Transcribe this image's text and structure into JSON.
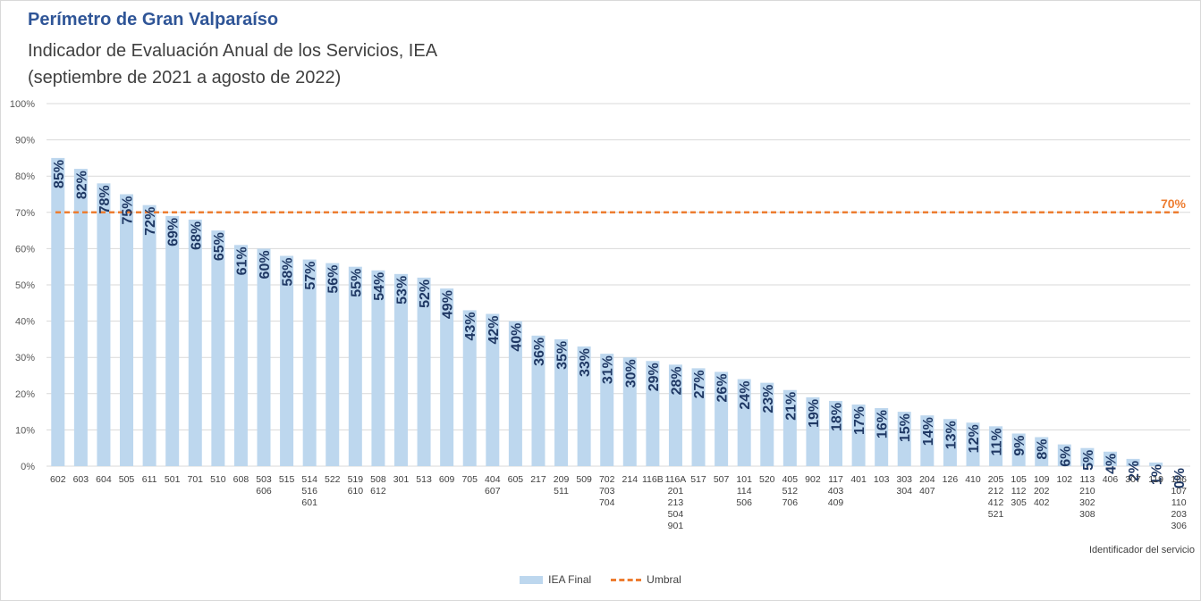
{
  "header": {
    "title": "Perímetro de Gran Valparaíso",
    "subtitle_line1": "Indicador de Evaluación Anual de los Servicios, IEA",
    "subtitle_line2": "(septiembre de 2021 a agosto de 2022)"
  },
  "legend": {
    "bar_label": "IEA Final",
    "line_label": "Umbral"
  },
  "colors": {
    "bar": "#bdd7ee",
    "threshold": "#ed7d31",
    "data_label": "#1f3864",
    "title": "#2f5597",
    "grid": "#d9d9d9"
  },
  "chart_data": {
    "type": "bar",
    "xlabel": "Identificador  del servicio",
    "ylabel": "",
    "ylim": [
      0,
      100
    ],
    "yticks": [
      "0%",
      "10%",
      "20%",
      "30%",
      "40%",
      "50%",
      "60%",
      "70%",
      "80%",
      "90%",
      "100%"
    ],
    "grid": true,
    "legend_position": "bottom",
    "categories": [
      [
        "602"
      ],
      [
        "603"
      ],
      [
        "604"
      ],
      [
        "505"
      ],
      [
        "611"
      ],
      [
        "501"
      ],
      [
        "701"
      ],
      [
        "510"
      ],
      [
        "608"
      ],
      [
        "503",
        "606"
      ],
      [
        "515"
      ],
      [
        "514",
        "516",
        "601"
      ],
      [
        "522"
      ],
      [
        "519",
        "610"
      ],
      [
        "508",
        "612"
      ],
      [
        "301"
      ],
      [
        "513"
      ],
      [
        "609"
      ],
      [
        "705"
      ],
      [
        "404",
        "607"
      ],
      [
        "605"
      ],
      [
        "217"
      ],
      [
        "209",
        "511"
      ],
      [
        "509"
      ],
      [
        "702",
        "703",
        "704"
      ],
      [
        "214"
      ],
      [
        "116B"
      ],
      [
        "116A",
        "201",
        "213",
        "504",
        "901"
      ],
      [
        "517"
      ],
      [
        "507"
      ],
      [
        "101",
        "114",
        "506"
      ],
      [
        "520"
      ],
      [
        "405",
        "512",
        "706"
      ],
      [
        "902"
      ],
      [
        "117",
        "403",
        "409"
      ],
      [
        "401"
      ],
      [
        "103"
      ],
      [
        "303",
        "304"
      ],
      [
        "204",
        "407"
      ],
      [
        "126"
      ],
      [
        "410"
      ],
      [
        "205",
        "212",
        "412",
        "521"
      ],
      [
        "105",
        "112",
        "305"
      ],
      [
        "109",
        "202",
        "402"
      ],
      [
        "102"
      ],
      [
        "113",
        "210",
        "302",
        "308"
      ],
      [
        "406"
      ],
      [
        "307"
      ],
      [
        "119"
      ],
      [
        "106",
        "107",
        "110",
        "203",
        "306"
      ]
    ],
    "series": [
      {
        "name": "IEA Final",
        "values": [
          85,
          82,
          78,
          75,
          72,
          69,
          68,
          65,
          61,
          60,
          58,
          57,
          56,
          55,
          54,
          53,
          52,
          49,
          43,
          42,
          40,
          36,
          35,
          33,
          31,
          30,
          29,
          28,
          27,
          26,
          24,
          23,
          21,
          19,
          18,
          17,
          16,
          15,
          14,
          13,
          12,
          11,
          9,
          8,
          6,
          5,
          4,
          2,
          1,
          0
        ],
        "labels": [
          "85%",
          "82%",
          "78%",
          "75%",
          "72%",
          "69%",
          "68%",
          "65%",
          "61%",
          "60%",
          "58%",
          "57%",
          "56%",
          "55%",
          "54%",
          "53%",
          "52%",
          "49%",
          "43%",
          "42%",
          "40%",
          "36%",
          "35%",
          "33%",
          "31%",
          "30%",
          "29%",
          "28%",
          "27%",
          "26%",
          "24%",
          "23%",
          "21%",
          "19%",
          "18%",
          "17%",
          "16%",
          "15%",
          "14%",
          "13%",
          "12%",
          "11%",
          "9%",
          "8%",
          "6%",
          "5%",
          "4%",
          "2%",
          "1%",
          "0%"
        ]
      },
      {
        "name": "Umbral",
        "value": 70,
        "label": "70%"
      }
    ]
  }
}
